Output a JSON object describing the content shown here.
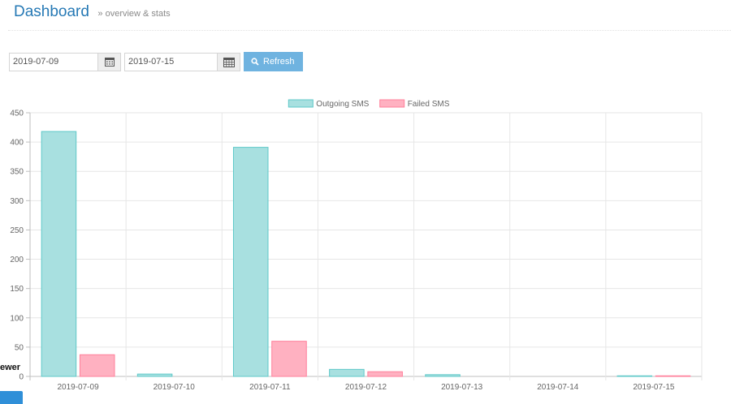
{
  "header": {
    "title": "Dashboard",
    "breadcrumb": "» overview & stats"
  },
  "filters": {
    "start_date": "2019-07-09",
    "end_date": "2019-07-15",
    "refresh_label": "Refresh"
  },
  "side": {
    "label": "ewer"
  },
  "icons": {
    "calendar": "calendar-icon",
    "search": "search-icon"
  },
  "colors": {
    "title": "#2679b5",
    "refresh_button": "#6fb3e0",
    "outgoing_fill": "#a8e0e0",
    "outgoing_stroke": "#5ec8c8",
    "failed_fill": "#ffb1c1",
    "failed_stroke": "#ff7f9a"
  },
  "chart_data": {
    "type": "bar",
    "categories": [
      "2019-07-09",
      "2019-07-10",
      "2019-07-11",
      "2019-07-12",
      "2019-07-13",
      "2019-07-14",
      "2019-07-15"
    ],
    "series": [
      {
        "name": "Outgoing SMS",
        "values": [
          418,
          4,
          391,
          12,
          3,
          0,
          1
        ]
      },
      {
        "name": "Failed SMS",
        "values": [
          37,
          0,
          60,
          8,
          0,
          0,
          1
        ]
      }
    ],
    "yticks": [
      0,
      50,
      100,
      150,
      200,
      250,
      300,
      350,
      400,
      450
    ],
    "ylim": [
      0,
      450
    ],
    "grid": true,
    "legend": "top-center"
  }
}
